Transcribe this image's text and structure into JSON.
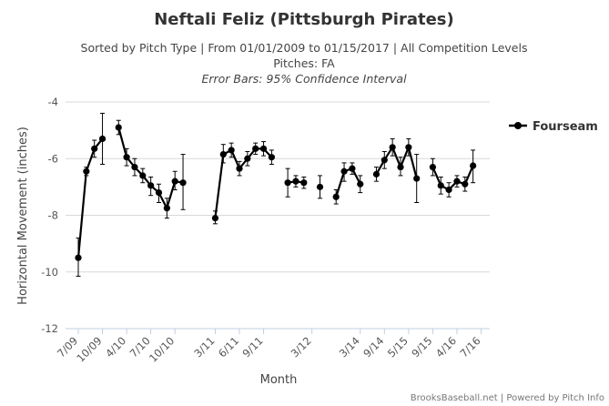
{
  "chart_data": {
    "type": "line",
    "title": "Neftali Feliz (Pittsburgh Pirates)",
    "subtitle_lines": [
      "Sorted by Pitch Type | From 01/01/2009 to 01/15/2017 | All Competition Levels",
      "Pitches: FA"
    ],
    "note": "Error Bars: 95% Confidence Interval",
    "xlabel": "Month",
    "ylabel": "Horizontal Movement (inches)",
    "ylim": [
      -12,
      -4
    ],
    "yticks": [
      -4,
      -6,
      -8,
      -10,
      -12
    ],
    "grid": true,
    "legend_position": "top-right",
    "x_tick_labels": [
      {
        "label": "7/09",
        "i": 0
      },
      {
        "label": "10/09",
        "i": 3
      },
      {
        "label": "4/10",
        "i": 6
      },
      {
        "label": "7/10",
        "i": 9
      },
      {
        "label": "10/10",
        "i": 12
      },
      {
        "label": "3/11",
        "i": 17
      },
      {
        "label": "6/11",
        "i": 20
      },
      {
        "label": "9/11",
        "i": 23
      },
      {
        "label": "3/12",
        "i": 29
      },
      {
        "label": "3/14",
        "i": 35
      },
      {
        "label": "9/14",
        "i": 38
      },
      {
        "label": "5/15",
        "i": 41
      },
      {
        "label": "9/15",
        "i": 44
      },
      {
        "label": "4/16",
        "i": 47
      },
      {
        "label": "7/16",
        "i": 50
      }
    ],
    "x_count": 53,
    "series": [
      {
        "name": "Fourseam",
        "color": "#000000",
        "points": [
          {
            "i": 0,
            "y": -9.5,
            "lo": -10.15,
            "hi": -8.8
          },
          {
            "i": 1,
            "y": -6.45,
            "lo": -6.6,
            "hi": -6.3
          },
          {
            "i": 2,
            "y": -5.65,
            "lo": -5.95,
            "hi": -5.35
          },
          {
            "i": 3,
            "y": -5.3,
            "lo": -6.2,
            "hi": -4.4
          },
          {
            "i": 5,
            "y": -4.9,
            "lo": -5.15,
            "hi": -4.65
          },
          {
            "i": 6,
            "y": -5.95,
            "lo": -6.25,
            "hi": -5.65
          },
          {
            "i": 7,
            "y": -6.3,
            "lo": -6.6,
            "hi": -6.0
          },
          {
            "i": 8,
            "y": -6.6,
            "lo": -6.85,
            "hi": -6.35
          },
          {
            "i": 9,
            "y": -6.95,
            "lo": -7.3,
            "hi": -6.65
          },
          {
            "i": 10,
            "y": -7.2,
            "lo": -7.55,
            "hi": -6.9
          },
          {
            "i": 11,
            "y": -7.75,
            "lo": -8.1,
            "hi": -7.4
          },
          {
            "i": 12,
            "y": -6.8,
            "lo": -7.1,
            "hi": -6.45
          },
          {
            "i": 13,
            "y": -6.85,
            "lo": -7.8,
            "hi": -5.85
          },
          {
            "i": 17,
            "y": -8.1,
            "lo": -8.3,
            "hi": -7.85
          },
          {
            "i": 18,
            "y": -5.85,
            "lo": -6.15,
            "hi": -5.5
          },
          {
            "i": 19,
            "y": -5.7,
            "lo": -5.95,
            "hi": -5.45
          },
          {
            "i": 20,
            "y": -6.35,
            "lo": -6.6,
            "hi": -6.1
          },
          {
            "i": 21,
            "y": -6.0,
            "lo": -6.25,
            "hi": -5.75
          },
          {
            "i": 22,
            "y": -5.65,
            "lo": -5.85,
            "hi": -5.45
          },
          {
            "i": 23,
            "y": -5.65,
            "lo": -5.9,
            "hi": -5.4
          },
          {
            "i": 24,
            "y": -5.95,
            "lo": -6.2,
            "hi": -5.7
          },
          {
            "i": 26,
            "y": -6.85,
            "lo": -7.35,
            "hi": -6.35
          },
          {
            "i": 27,
            "y": -6.8,
            "lo": -7.0,
            "hi": -6.6
          },
          {
            "i": 28,
            "y": -6.85,
            "lo": -7.05,
            "hi": -6.65
          },
          {
            "i": 30,
            "y": -7.0,
            "lo": -7.4,
            "hi": -6.6
          },
          {
            "i": 32,
            "y": -7.35,
            "lo": -7.6,
            "hi": -7.1
          },
          {
            "i": 33,
            "y": -6.45,
            "lo": -6.8,
            "hi": -6.15
          },
          {
            "i": 34,
            "y": -6.35,
            "lo": -6.55,
            "hi": -6.15
          },
          {
            "i": 35,
            "y": -6.9,
            "lo": -7.2,
            "hi": -6.6
          },
          {
            "i": 37,
            "y": -6.55,
            "lo": -6.8,
            "hi": -6.3
          },
          {
            "i": 38,
            "y": -6.05,
            "lo": -6.35,
            "hi": -5.75
          },
          {
            "i": 39,
            "y": -5.6,
            "lo": -5.9,
            "hi": -5.3
          },
          {
            "i": 40,
            "y": -6.3,
            "lo": -6.6,
            "hi": -5.95
          },
          {
            "i": 41,
            "y": -5.6,
            "lo": -5.9,
            "hi": -5.3
          },
          {
            "i": 42,
            "y": -6.7,
            "lo": -7.55,
            "hi": -5.85
          },
          {
            "i": 44,
            "y": -6.3,
            "lo": -6.6,
            "hi": -6.0
          },
          {
            "i": 45,
            "y": -6.95,
            "lo": -7.25,
            "hi": -6.65
          },
          {
            "i": 46,
            "y": -7.1,
            "lo": -7.35,
            "hi": -6.85
          },
          {
            "i": 47,
            "y": -6.8,
            "lo": -7.0,
            "hi": -6.6
          },
          {
            "i": 48,
            "y": -6.9,
            "lo": -7.15,
            "hi": -6.65
          },
          {
            "i": 49,
            "y": -6.25,
            "lo": -6.85,
            "hi": -5.7
          }
        ],
        "gaps_after": [
          3,
          13,
          24,
          28,
          30,
          35,
          42
        ]
      }
    ]
  },
  "credit": "BrooksBaseball.net | Powered by Pitch Info"
}
